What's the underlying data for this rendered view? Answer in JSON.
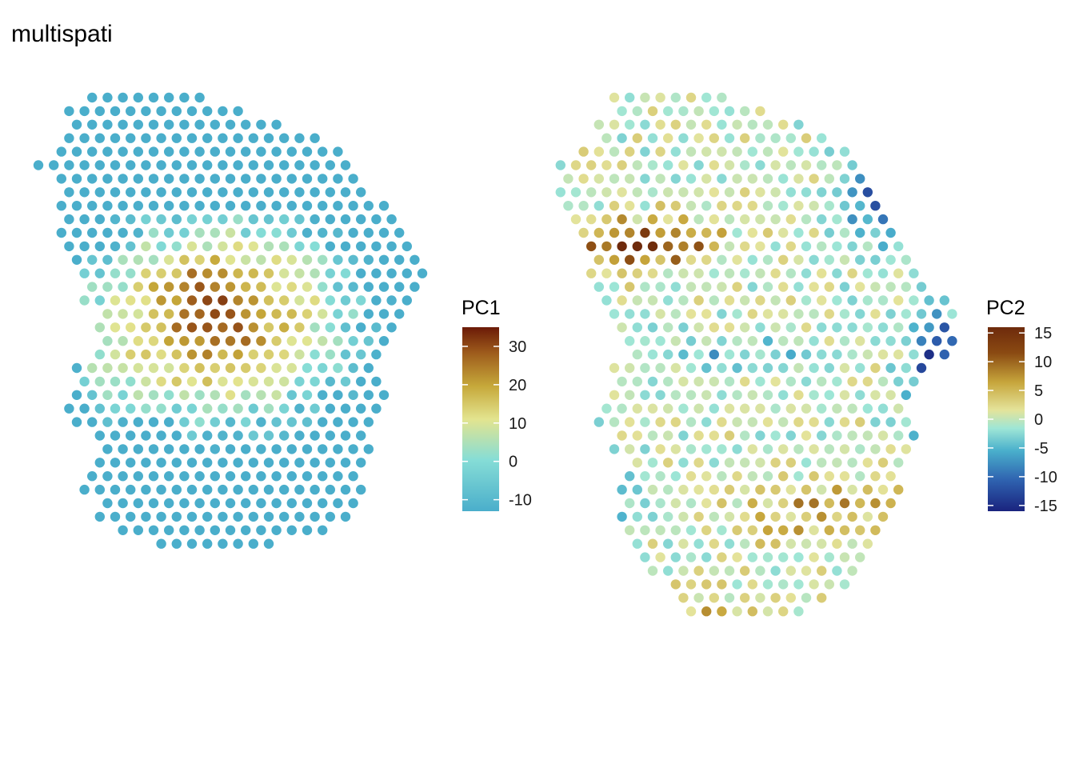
{
  "title": "multispati",
  "chart_data": [
    {
      "type": "scatter",
      "title": "",
      "color_variable": "PC1",
      "legend": {
        "title": "PC1",
        "ticks": [
          30,
          20,
          10,
          0,
          -10
        ],
        "limits": [
          -13,
          35
        ],
        "placement": "right"
      },
      "axes": "none",
      "grid": false,
      "colorscale": [
        "#4aaecb",
        "#86ddd6",
        "#e3e48f",
        "#c6a83a",
        "#9e5c1c",
        "#6b1a07"
      ],
      "description_values": "hexagonal spot grid; low values (-10) cyan-blue at edges, high values (20-35) brown in central band"
    },
    {
      "type": "scatter",
      "title": "",
      "color_variable": "PC2",
      "legend": {
        "title": "PC2",
        "ticks": [
          15,
          10,
          5,
          0,
          -5,
          -10,
          -15
        ],
        "limits": [
          -16,
          16
        ],
        "placement": "right"
      },
      "axes": "none",
      "grid": false,
      "colorscale": [
        "#1a237e",
        "#2f63b0",
        "#4ab0cc",
        "#9ee6d6",
        "#e4e39a",
        "#c7a63c",
        "#8a4a12",
        "#6e2a0c"
      ]
    }
  ]
}
